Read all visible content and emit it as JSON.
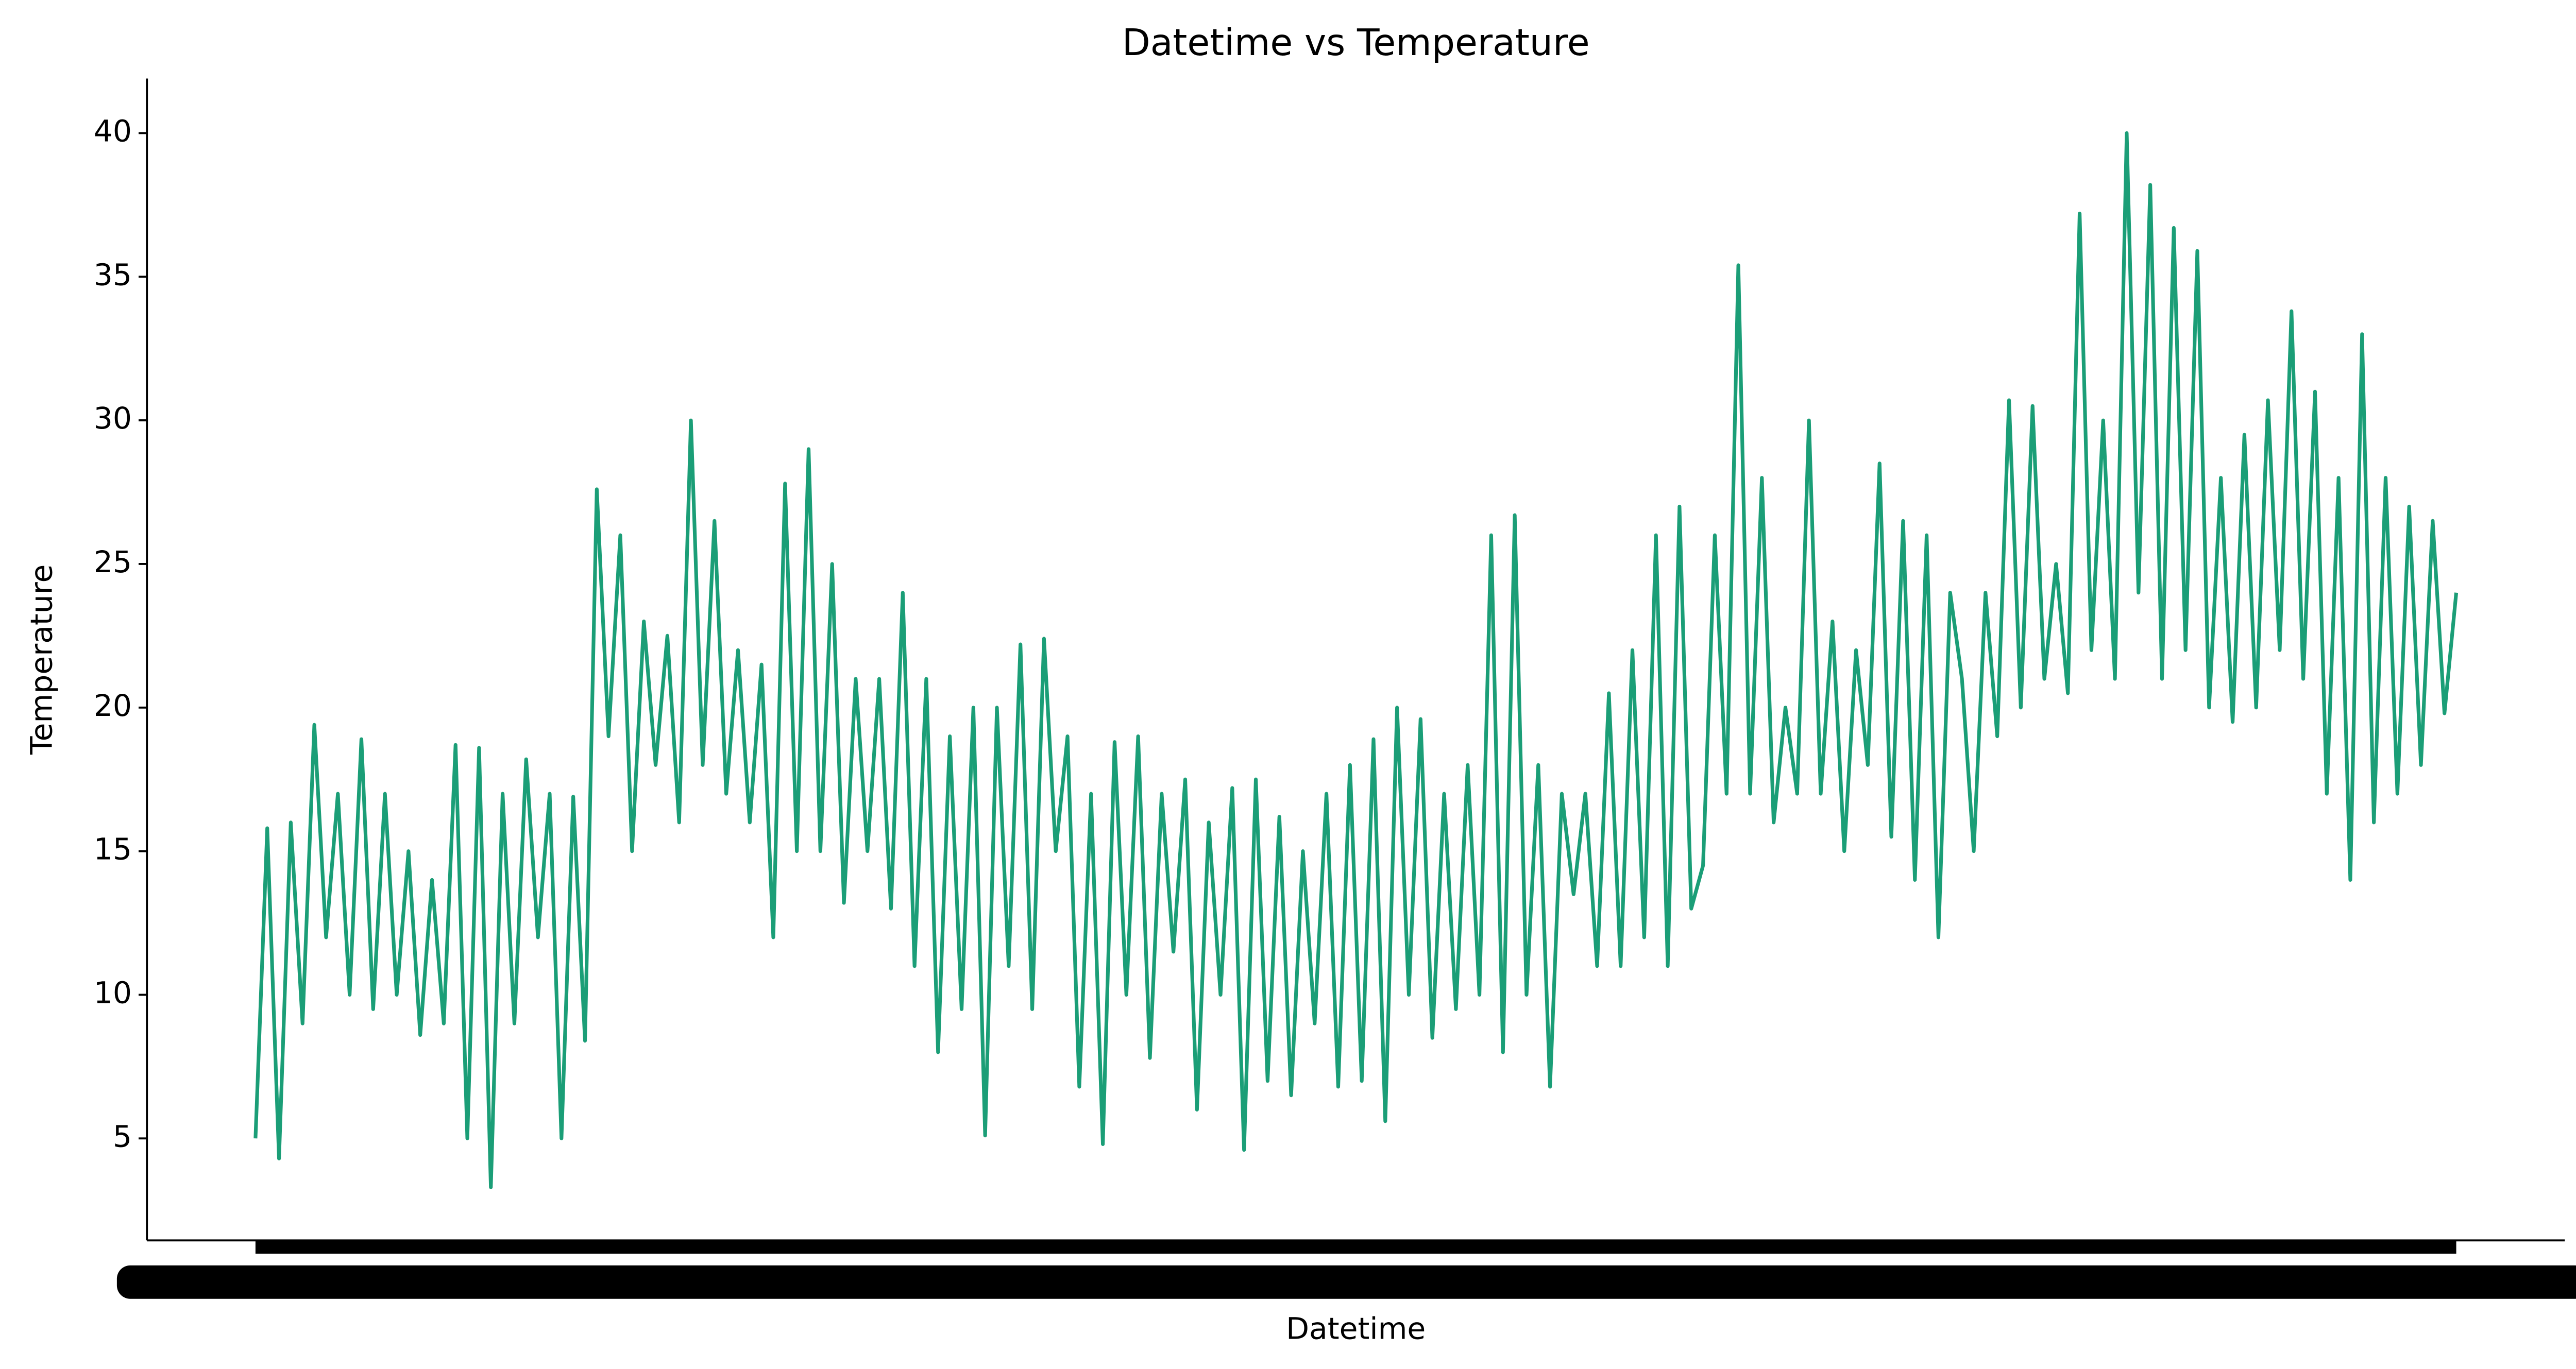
{
  "chart_data": {
    "type": "line",
    "title": "Datetime vs Temperature",
    "xlabel": "Datetime",
    "ylabel": "Temperature",
    "color": "#1b9e77",
    "ylim": [
      1.45,
      41.9
    ],
    "yticks": [
      5,
      10,
      15,
      20,
      25,
      30,
      35,
      40
    ],
    "values": [
      5,
      15.8,
      4.3,
      16,
      9,
      19.4,
      12,
      17,
      10,
      18.9,
      9.5,
      17,
      10,
      15,
      8.6,
      14,
      9,
      18.7,
      5,
      18.6,
      3.3,
      17,
      9,
      18.2,
      12,
      17,
      5,
      16.9,
      8.4,
      27.6,
      19,
      26,
      15,
      23,
      18,
      22.5,
      16,
      30,
      18,
      26.5,
      17,
      22,
      16,
      21.5,
      12,
      27.8,
      15,
      29,
      15,
      25,
      13.2,
      21,
      15,
      21,
      13,
      24,
      11,
      21,
      8,
      19,
      9.5,
      20,
      5.1,
      20,
      11,
      22.2,
      9.5,
      22.4,
      15,
      19,
      6.8,
      17,
      4.8,
      18.8,
      10,
      19,
      7.8,
      17,
      11.5,
      17.5,
      6,
      16,
      10,
      17.2,
      4.6,
      17.5,
      7,
      16.2,
      6.5,
      15,
      9,
      17,
      6.8,
      18,
      7,
      18.9,
      5.6,
      20,
      10,
      19.6,
      8.5,
      17,
      9.5,
      18,
      10,
      26,
      8,
      26.7,
      10,
      18,
      6.8,
      17,
      13.5,
      17,
      11,
      20.5,
      11,
      22,
      12,
      26,
      11,
      27,
      13,
      14.5,
      26,
      17,
      35.4,
      17,
      28,
      16,
      20,
      17,
      30,
      17,
      23,
      15,
      22,
      18,
      28.5,
      15.5,
      26.5,
      14,
      26,
      12,
      24,
      21,
      15,
      24,
      19,
      30.7,
      20,
      30.5,
      21,
      25,
      20.5,
      37.2,
      22,
      30,
      21,
      40,
      24,
      38.2,
      21,
      36.7,
      22,
      35.9,
      20,
      28,
      19.5,
      29.5,
      20,
      30.7,
      22,
      33.8,
      21,
      31,
      17,
      28,
      14,
      33,
      16,
      28,
      17,
      27,
      18,
      26.5,
      19.8,
      24
    ]
  }
}
